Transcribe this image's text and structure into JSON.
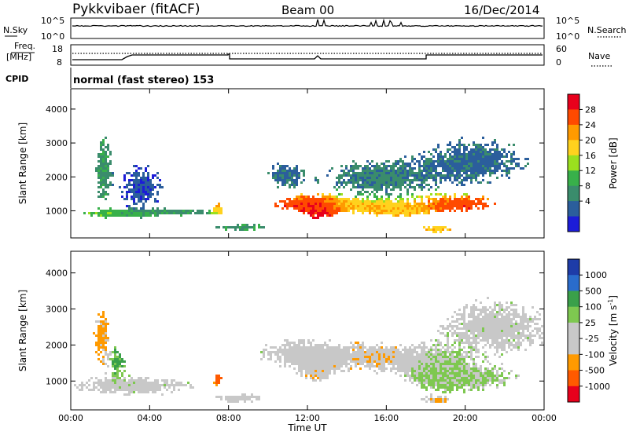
{
  "header": {
    "station": "Pykkvibaer (fitACF)",
    "beam": "Beam 00",
    "date": "16/Dec/2014"
  },
  "noise_panel": {
    "left_label": "N.Sky",
    "right_label": "N.Search",
    "left_ticks": [
      "10^5",
      "10^0"
    ],
    "right_ticks": [
      "10^5",
      "10^0"
    ],
    "scale": "log"
  },
  "freq_panel": {
    "left_label_1": "Freq.",
    "left_label_2": "[MHz]",
    "right_label": "Nave",
    "left_ticks": [
      "18",
      "8"
    ],
    "right_ticks": [
      "60",
      "0"
    ]
  },
  "cpid": {
    "label": "CPID",
    "value": "normal (fast stereo) 153"
  },
  "axes": {
    "ylabel": "Slant Range [km]",
    "xlabel": "Time UT",
    "y_ticks": [
      "1000",
      "2000",
      "3000",
      "4000"
    ],
    "x_ticks": [
      "00:00",
      "04:00",
      "08:00",
      "12:00",
      "16:00",
      "20:00",
      "00:00"
    ]
  },
  "power_colorbar": {
    "label": "Power [dB]",
    "ticks": [
      "28",
      "24",
      "20",
      "16",
      "12",
      "8",
      "4"
    ],
    "colors": [
      "#e8001c",
      "#ff4a00",
      "#ff9a00",
      "#ffd21e",
      "#9be01e",
      "#38b04a",
      "#3a8c6c",
      "#2b5e9c",
      "#1c1cd8"
    ]
  },
  "velocity_colorbar": {
    "label": "Velocity [m s",
    "label_sup": "-1",
    "label_end": "]",
    "ticks": [
      "1000",
      "500",
      "100",
      "25",
      "-25",
      "-100",
      "-500",
      "-1000"
    ],
    "colors": [
      "#1e3ca8",
      "#2a6ccc",
      "#3aa04a",
      "#7ec850",
      "#c8c8c8",
      "#c8c8c8",
      "#ff9a00",
      "#ff5a00",
      "#e8001c"
    ]
  },
  "chart_data": [
    {
      "type": "heatmap",
      "name": "power",
      "xlabel": "Time UT",
      "ylabel": "Slant Range [km]",
      "xlim": [
        0,
        24
      ],
      "ylim": [
        200,
        4600
      ],
      "zlabel": "Power [dB]",
      "zlim": [
        0,
        32
      ],
      "blobs": [
        {
          "x": 2.2,
          "y": 950,
          "sx": 1.5,
          "sy": 90,
          "z": 14
        },
        {
          "x": 5.5,
          "y": 1000,
          "sx": 1.4,
          "sy": 70,
          "z": 10
        },
        {
          "x": 1.6,
          "y": 2300,
          "sx": 0.3,
          "sy": 700,
          "z": 10
        },
        {
          "x": 3.5,
          "y": 1700,
          "sx": 0.8,
          "sy": 500,
          "z": 4
        },
        {
          "x": 7.4,
          "y": 1100,
          "sx": 0.2,
          "sy": 120,
          "z": 22
        },
        {
          "x": 8.5,
          "y": 550,
          "sx": 1.0,
          "sy": 90,
          "z": 10
        },
        {
          "x": 11.5,
          "y": 1250,
          "sx": 0.9,
          "sy": 150,
          "z": 28
        },
        {
          "x": 12.7,
          "y": 1100,
          "sx": 0.6,
          "sy": 250,
          "z": 30
        },
        {
          "x": 14.5,
          "y": 1200,
          "sx": 1.4,
          "sy": 150,
          "z": 22
        },
        {
          "x": 16.5,
          "y": 1050,
          "sx": 1.2,
          "sy": 130,
          "z": 20
        },
        {
          "x": 19.5,
          "y": 1250,
          "sx": 1.4,
          "sy": 170,
          "z": 28
        },
        {
          "x": 18.5,
          "y": 500,
          "sx": 0.5,
          "sy": 80,
          "z": 20
        },
        {
          "x": 10.8,
          "y": 2100,
          "sx": 0.7,
          "sy": 300,
          "z": 6
        },
        {
          "x": 15.5,
          "y": 2000,
          "sx": 2.0,
          "sy": 400,
          "z": 8
        },
        {
          "x": 20.5,
          "y": 2500,
          "sx": 2.0,
          "sy": 500,
          "z": 6
        }
      ]
    },
    {
      "type": "heatmap",
      "name": "velocity",
      "xlabel": "Time UT",
      "ylabel": "Slant Range [km]",
      "xlim": [
        0,
        24
      ],
      "ylim": [
        200,
        4600
      ],
      "zlabel": "Velocity [m s-1]",
      "zlim": [
        -1000,
        1000
      ],
      "blobs": [
        {
          "x": 3.0,
          "y": 900,
          "sx": 2.5,
          "sy": 200,
          "z": 0
        },
        {
          "x": 1.5,
          "y": 2300,
          "sx": 0.3,
          "sy": 600,
          "z": -400
        },
        {
          "x": 2.3,
          "y": 1600,
          "sx": 0.3,
          "sy": 300,
          "z": 400
        },
        {
          "x": 8.5,
          "y": 550,
          "sx": 1.0,
          "sy": 80,
          "z": -200
        },
        {
          "x": 7.4,
          "y": 1100,
          "sx": 0.15,
          "sy": 100,
          "z": -800
        },
        {
          "x": 11.5,
          "y": 1800,
          "sx": 1.5,
          "sy": 300,
          "z": 0
        },
        {
          "x": 12.5,
          "y": 1400,
          "sx": 0.7,
          "sy": 300,
          "z": -300
        },
        {
          "x": 15.5,
          "y": 1700,
          "sx": 1.5,
          "sy": 300,
          "z": -300
        },
        {
          "x": 18.5,
          "y": 1400,
          "sx": 1.0,
          "sy": 400,
          "z": 200
        },
        {
          "x": 20.0,
          "y": 1100,
          "sx": 1.8,
          "sy": 250,
          "z": 150
        },
        {
          "x": 21.5,
          "y": 2500,
          "sx": 2.0,
          "sy": 600,
          "z": 0
        },
        {
          "x": 18.5,
          "y": 500,
          "sx": 0.5,
          "sy": 70,
          "z": -400
        }
      ]
    }
  ]
}
